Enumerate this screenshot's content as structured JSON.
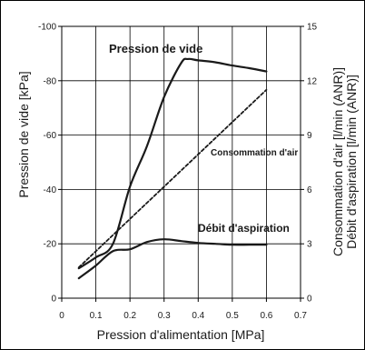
{
  "chart_data": {
    "type": "line",
    "title": "",
    "xlabel": "Pression d'alimentation [MPa]",
    "ylabel_left": "Pression de vide [kPa]",
    "ylabel_right": [
      "Consommation d'air [l/min (ANR)]",
      "Débit d'aspiration [l/min (ANR)]"
    ],
    "xlim": [
      0,
      0.7
    ],
    "ylim_left": [
      0,
      -100
    ],
    "ylim_right": [
      0,
      15
    ],
    "grid": true,
    "x_ticks": [
      "0",
      "0.1",
      "0.2",
      "0.3",
      "0.4",
      "0.5",
      "0.6",
      "0.7"
    ],
    "y_left_ticks": [
      "0",
      "-20",
      "-40",
      "-60",
      "-80",
      "-100"
    ],
    "y_right_ticks": [
      "0",
      "3",
      "6",
      "9",
      "12",
      "15"
    ],
    "series": [
      {
        "name": "Pression de vide",
        "axis": "left",
        "style": "solid",
        "x": [
          0.05,
          0.1,
          0.15,
          0.2,
          0.25,
          0.3,
          0.35,
          0.37,
          0.4,
          0.45,
          0.5,
          0.55,
          0.6
        ],
        "y": [
          -11,
          -15,
          -20,
          -41,
          -56,
          -74,
          -86.5,
          -88,
          -87.5,
          -86.8,
          -85.6,
          -84.6,
          -83.4
        ]
      },
      {
        "name": "Consommation d'air",
        "axis": "right",
        "style": "dashed",
        "x": [
          0.05,
          0.6
        ],
        "y": [
          1.7,
          11.5
        ]
      },
      {
        "name": "Débit d'aspiration",
        "axis": "right",
        "style": "solid",
        "x": [
          0.05,
          0.1,
          0.15,
          0.2,
          0.25,
          0.3,
          0.35,
          0.4,
          0.45,
          0.5,
          0.55,
          0.6
        ],
        "y": [
          1.1,
          1.8,
          2.6,
          2.7,
          3.1,
          3.25,
          3.15,
          3.05,
          3.0,
          2.95,
          2.95,
          2.95
        ]
      }
    ]
  }
}
